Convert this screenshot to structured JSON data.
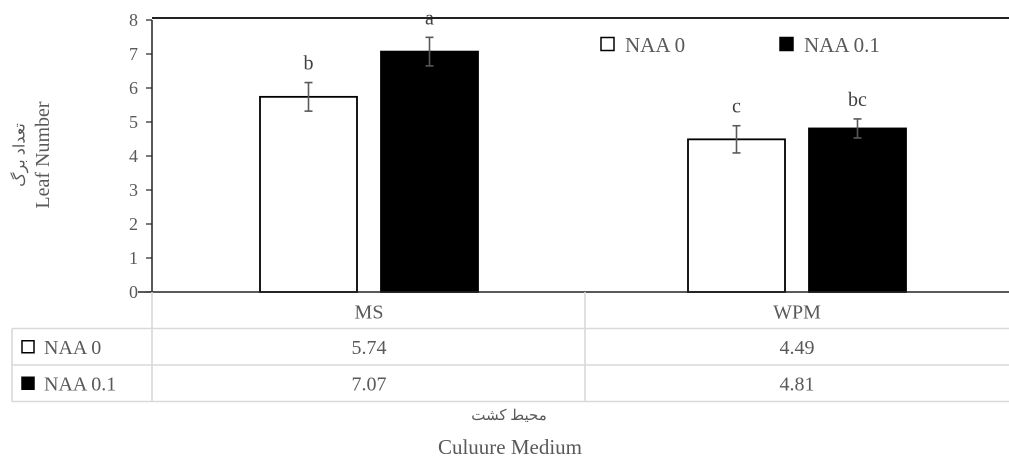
{
  "chart_data": {
    "type": "bar",
    "categories": [
      "MS",
      "WPM"
    ],
    "series": [
      {
        "name": "NAA 0",
        "fill": "#ffffff",
        "values": [
          5.74,
          4.49
        ],
        "errors": [
          0.42,
          0.4
        ],
        "letters": [
          "b",
          "c"
        ],
        "table_values": [
          "5.74",
          "4.49"
        ]
      },
      {
        "name": "NAA 0.1",
        "fill": "#000000",
        "values": [
          7.07,
          4.81
        ],
        "errors": [
          0.42,
          0.28
        ],
        "letters": [
          "a",
          "bc"
        ],
        "table_values": [
          "7.07",
          "4.81"
        ]
      }
    ],
    "ylabel_fa": "تعداد برگ",
    "ylabel_en": "Leaf Number",
    "xlabel_fa": "محیط کشت",
    "xlabel_en": "Culuure Medium",
    "ylim": [
      0,
      8
    ],
    "yticks": [
      "0",
      "1",
      "2",
      "3",
      "4",
      "5",
      "6",
      "7",
      "8"
    ],
    "grid": false,
    "legend_position": "top-right",
    "data_table": true,
    "colors": {
      "axis": "#222222",
      "error_bar": "#595959",
      "table_border": "#d9d9d9"
    }
  }
}
